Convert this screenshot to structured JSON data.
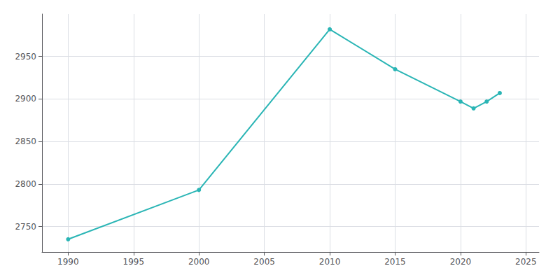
{
  "chart_data": {
    "type": "line",
    "x": [
      1990,
      2000,
      2010,
      2015,
      2020,
      2021,
      2022,
      2023
    ],
    "values": [
      2735,
      2793,
      2982,
      2935,
      2897,
      2889,
      2897,
      2907
    ],
    "color": "#2ab5b5",
    "marker": "circle",
    "xlim": [
      1988,
      2026
    ],
    "ylim": [
      2720,
      3000
    ],
    "xticks": [
      1990,
      1995,
      2000,
      2005,
      2010,
      2015,
      2020,
      2025
    ],
    "yticks": [
      2750,
      2800,
      2850,
      2900,
      2950
    ],
    "grid": true
  }
}
